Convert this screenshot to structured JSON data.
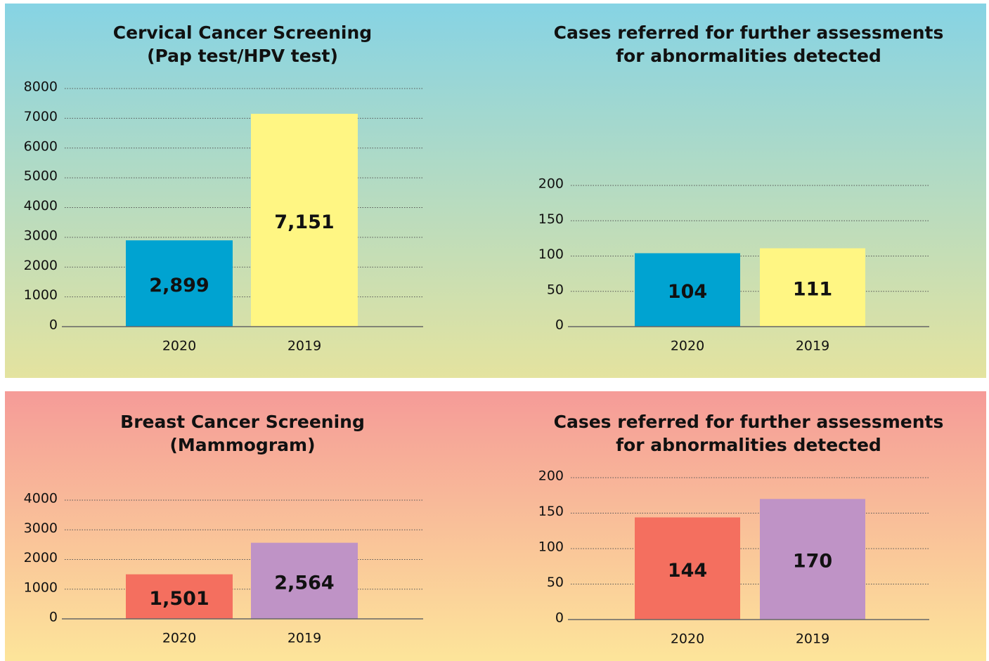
{
  "chart_data": [
    {
      "type": "bar",
      "title": "Cervical Cancer Screening\n(Pap test/HPV test)",
      "categories": [
        "2020",
        "2019"
      ],
      "values": [
        2899,
        7151
      ],
      "value_labels": [
        "2,899",
        "7,151"
      ],
      "colors": [
        "#00a3d1",
        "#fff683"
      ],
      "ylim": [
        0,
        8000
      ],
      "yticks": [
        0,
        1000,
        2000,
        3000,
        4000,
        5000,
        6000,
        7000,
        8000
      ],
      "grid": true
    },
    {
      "type": "bar",
      "title": "Cases referred for further assessments\nfor abnormalities detected",
      "categories": [
        "2020",
        "2019"
      ],
      "values": [
        104,
        111
      ],
      "colors": [
        "#00a3d1",
        "#fff683"
      ],
      "ylim": [
        0,
        200
      ],
      "yticks": [
        0,
        50,
        100,
        150,
        200
      ],
      "grid": true
    },
    {
      "type": "bar",
      "title": "Breast Cancer Screening\n(Mammogram)",
      "categories": [
        "2020",
        "2019"
      ],
      "values": [
        1501,
        2564
      ],
      "value_labels": [
        "1,501",
        "2,564"
      ],
      "colors": [
        "#f46f5f",
        "#bf93c6"
      ],
      "ylim": [
        0,
        4000
      ],
      "yticks": [
        0,
        1000,
        2000,
        3000,
        4000
      ],
      "grid": true
    },
    {
      "type": "bar",
      "title": "Cases referred for further assessments\nfor abnormalities detected",
      "categories": [
        "2020",
        "2019"
      ],
      "values": [
        144,
        170
      ],
      "colors": [
        "#f46f5f",
        "#bf93c6"
      ],
      "ylim": [
        0,
        200
      ],
      "yticks": [
        0,
        50,
        100,
        150,
        200
      ],
      "grid": true
    }
  ]
}
